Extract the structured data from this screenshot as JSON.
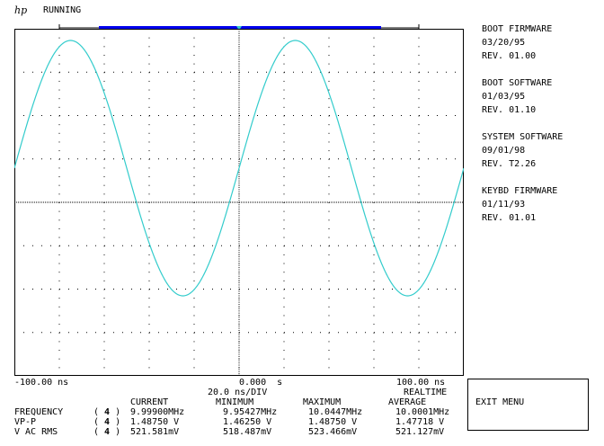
{
  "header": {
    "logo": "hp",
    "status": "RUNNING"
  },
  "sidebar": {
    "blocks": [
      {
        "title": "BOOT FIRMWARE",
        "date": "03/20/95",
        "rev": "REV. 01.00"
      },
      {
        "title": "BOOT SOFTWARE",
        "date": "01/03/95",
        "rev": "REV. 01.10"
      },
      {
        "title": "SYSTEM SOFTWARE",
        "date": "09/01/98",
        "rev": "REV. T2.26"
      },
      {
        "title": "KEYBD FIRMWARE",
        "date": "01/11/93",
        "rev": "REV. 01.01"
      }
    ],
    "exit_label": "EXIT MENU"
  },
  "timebase": {
    "left": "-100.00 ns",
    "center": "0.000  s",
    "right": "100.00 ns",
    "per_div": "20.0 ns/DIV",
    "mode": "REALTIME"
  },
  "measurements": {
    "headers": {
      "current": "CURRENT",
      "minimum": "MINIMUM",
      "maximum": "MAXIMUM",
      "average": "AVERAGE"
    },
    "rows": [
      {
        "name": "FREQUENCY",
        "channel": "4",
        "current": "9.99900MHz",
        "minimum": "9.95427MHz",
        "maximum": "10.0447MHz",
        "average": "10.0001MHz"
      },
      {
        "name": "VP-P",
        "channel": "4",
        "current": "1.48750 V",
        "minimum": "1.46250 V",
        "maximum": "1.48750 V",
        "average": "1.47718 V"
      },
      {
        "name": "V AC RMS",
        "channel": "4",
        "current": "521.581mV",
        "minimum": "518.487mV",
        "maximum": "523.466mV",
        "average": "521.127mV"
      }
    ]
  },
  "trace": {
    "color": "#33cccc",
    "cycles": 2,
    "start_phase_deg": 0
  },
  "colors": {
    "grid": "#000000",
    "record_bar": "#0000ee",
    "trigger_marker": "#33cccc"
  }
}
